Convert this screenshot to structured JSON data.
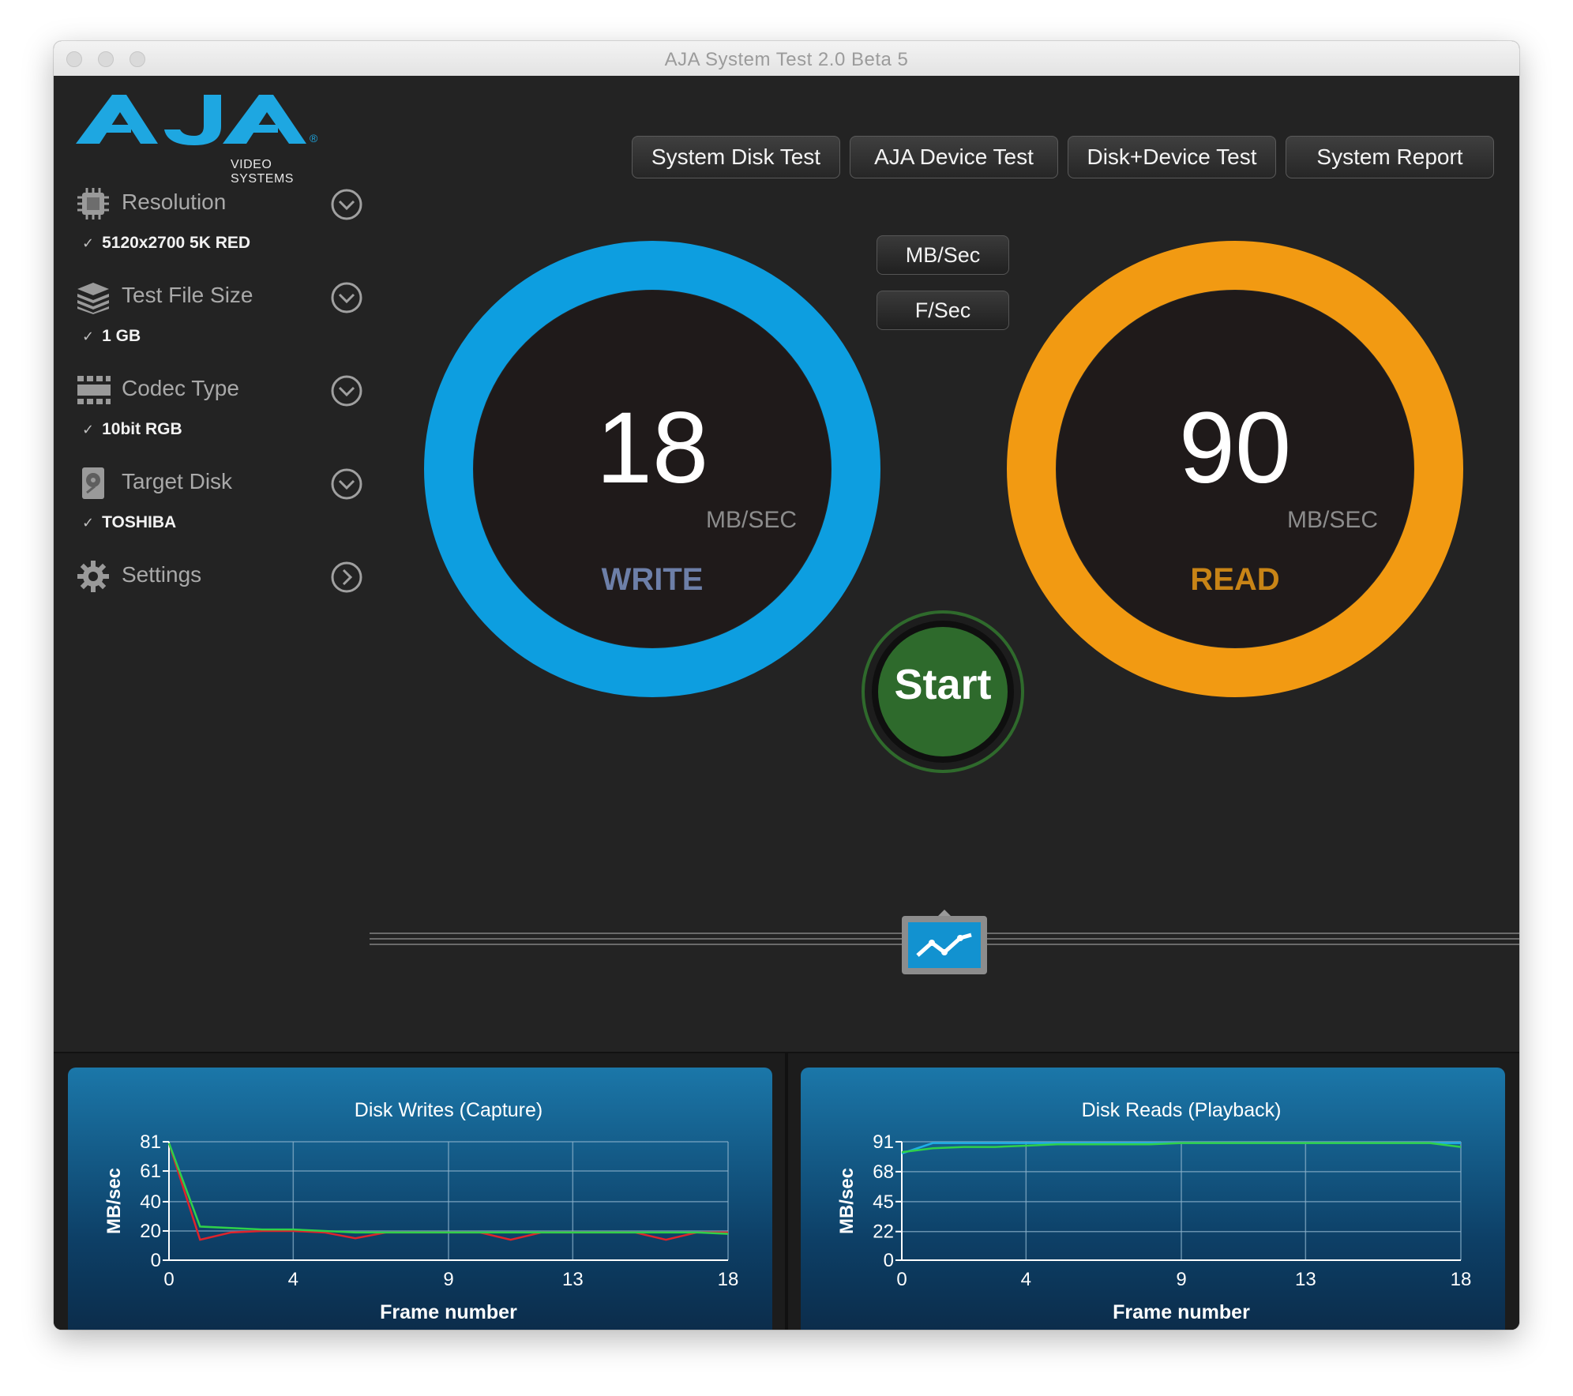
{
  "window": {
    "title": "AJA System Test 2.0 Beta 5"
  },
  "logo": {
    "text": "AJA",
    "subtitle": "VIDEO SYSTEMS",
    "brand_color": "#1ea7e1"
  },
  "tabs": [
    {
      "label": "System Disk Test"
    },
    {
      "label": "AJA Device Test"
    },
    {
      "label": "Disk+Device Test"
    },
    {
      "label": "System Report"
    }
  ],
  "sidebar": {
    "items": [
      {
        "label": "Resolution",
        "icon": "chip-icon",
        "value": "5120x2700 5K RED",
        "chevron": "chevron-down-icon"
      },
      {
        "label": "Test File Size",
        "icon": "layers-icon",
        "value": "1 GB",
        "chevron": "chevron-down-icon"
      },
      {
        "label": "Codec Type",
        "icon": "film-strip-icon",
        "value": "10bit RGB",
        "chevron": "chevron-down-icon"
      },
      {
        "label": "Target Disk",
        "icon": "hard-disk-icon",
        "value": "TOSHIBA",
        "chevron": "chevron-down-icon"
      },
      {
        "label": "Settings",
        "icon": "gear-icon",
        "value": "",
        "chevron": "chevron-right-icon"
      }
    ]
  },
  "units": {
    "mb": "MB/Sec",
    "fps": "F/Sec"
  },
  "write": {
    "value": "18",
    "unit": "MB/SEC",
    "label": "WRITE",
    "color": "#0d9ee0",
    "label_color": "#6d7fa8"
  },
  "read": {
    "value": "90",
    "unit": "MB/SEC",
    "label": "READ",
    "color": "#f29a12",
    "label_color": "#c88416"
  },
  "start": {
    "label": "Start",
    "color": "#2e6a2c"
  },
  "graph_toggle": {
    "icon": "line-graph-icon"
  },
  "chart_data": [
    {
      "type": "line",
      "title": "Disk Writes (Capture)",
      "xlabel": "Frame number",
      "ylabel": "MB/sec",
      "xlim": [
        0,
        18
      ],
      "ylim": [
        0,
        81
      ],
      "xticks": [
        "0",
        "4",
        "9",
        "13",
        "18"
      ],
      "yticks": [
        "0",
        "20",
        "40",
        "61",
        "81"
      ],
      "grid": true,
      "series": [
        {
          "color": "#e0232b",
          "x": [
            0,
            1,
            2,
            3,
            4,
            5,
            6,
            7,
            8,
            9,
            10,
            11,
            12,
            13,
            14,
            15,
            16,
            17,
            18
          ],
          "y": [
            80,
            14,
            19,
            20,
            20,
            19,
            15,
            19,
            19,
            19,
            19,
            14,
            19,
            19,
            19,
            19,
            14,
            19,
            19
          ]
        },
        {
          "color": "#2fd04a",
          "x": [
            0,
            1,
            2,
            3,
            4,
            5,
            6,
            7,
            8,
            9,
            10,
            11,
            12,
            13,
            14,
            15,
            16,
            17,
            18
          ],
          "y": [
            80,
            23,
            22,
            21,
            21,
            20,
            19,
            19,
            19,
            19,
            19,
            19,
            19,
            19,
            19,
            19,
            19,
            19,
            18
          ]
        }
      ]
    },
    {
      "type": "line",
      "title": "Disk Reads (Playback)",
      "xlabel": "Frame number",
      "ylabel": "MB/sec",
      "xlim": [
        0,
        18
      ],
      "ylim": [
        0,
        91
      ],
      "xticks": [
        "0",
        "4",
        "9",
        "13",
        "18"
      ],
      "yticks": [
        "0",
        "22",
        "45",
        "68",
        "91"
      ],
      "grid": true,
      "series": [
        {
          "color": "#1eaee6",
          "x": [
            0,
            1,
            2,
            3,
            4,
            5,
            6,
            7,
            8,
            9,
            10,
            11,
            12,
            13,
            14,
            15,
            16,
            17,
            18
          ],
          "y": [
            82,
            90,
            90,
            90,
            90,
            90,
            90,
            90,
            90,
            90,
            90,
            90,
            90,
            90,
            90,
            90,
            90,
            90,
            90
          ]
        },
        {
          "color": "#2fd04a",
          "x": [
            0,
            1,
            2,
            3,
            4,
            5,
            6,
            7,
            8,
            9,
            10,
            11,
            12,
            13,
            14,
            15,
            16,
            17,
            18
          ],
          "y": [
            83,
            86,
            87,
            87,
            88,
            89,
            89,
            89,
            89,
            90,
            90,
            90,
            90,
            90,
            90,
            90,
            90,
            90,
            87
          ]
        }
      ]
    }
  ]
}
